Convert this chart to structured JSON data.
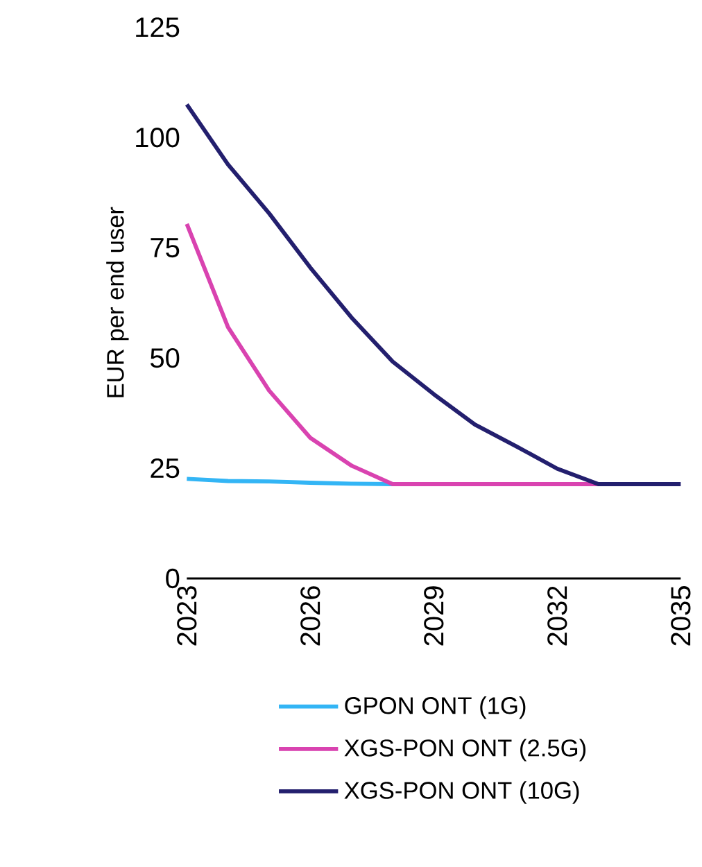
{
  "chart_data": {
    "type": "line",
    "ylabel": "EUR per end user",
    "x": [
      2023,
      2024,
      2025,
      2026,
      2027,
      2028,
      2029,
      2030,
      2031,
      2032,
      2033,
      2034,
      2035
    ],
    "series": [
      {
        "name": "GPON ONT (1G)",
        "color": "#33b5f5",
        "values": [
          22.6,
          22.1,
          22,
          21.7,
          21.5,
          21.4,
          null,
          null,
          null,
          null,
          null,
          null,
          null
        ]
      },
      {
        "name": "XGS-PON ONT (2.5G)",
        "color": "#d943b0",
        "values": [
          80.4,
          57,
          42.6,
          31.9,
          25.6,
          21.4,
          21.4,
          21.4,
          21.4,
          21.4,
          21.4,
          null,
          null
        ]
      },
      {
        "name": "XGS-PON ONT (10G)",
        "color": "#231f6e",
        "values": [
          107.5,
          93.9,
          82.8,
          70.5,
          59.2,
          49.2,
          41.8,
          34.9,
          30,
          24.9,
          21.4,
          21.4,
          21.4
        ]
      }
    ],
    "xlim": [
      2023,
      2035
    ],
    "xticks": [
      2023,
      2026,
      2029,
      2032,
      2035
    ],
    "ylim": [
      0,
      125
    ],
    "yticks": [
      0,
      25,
      50,
      75,
      100,
      125
    ],
    "grid": false,
    "legend": "bottom",
    "marker": "none",
    "line_style": "solid"
  }
}
